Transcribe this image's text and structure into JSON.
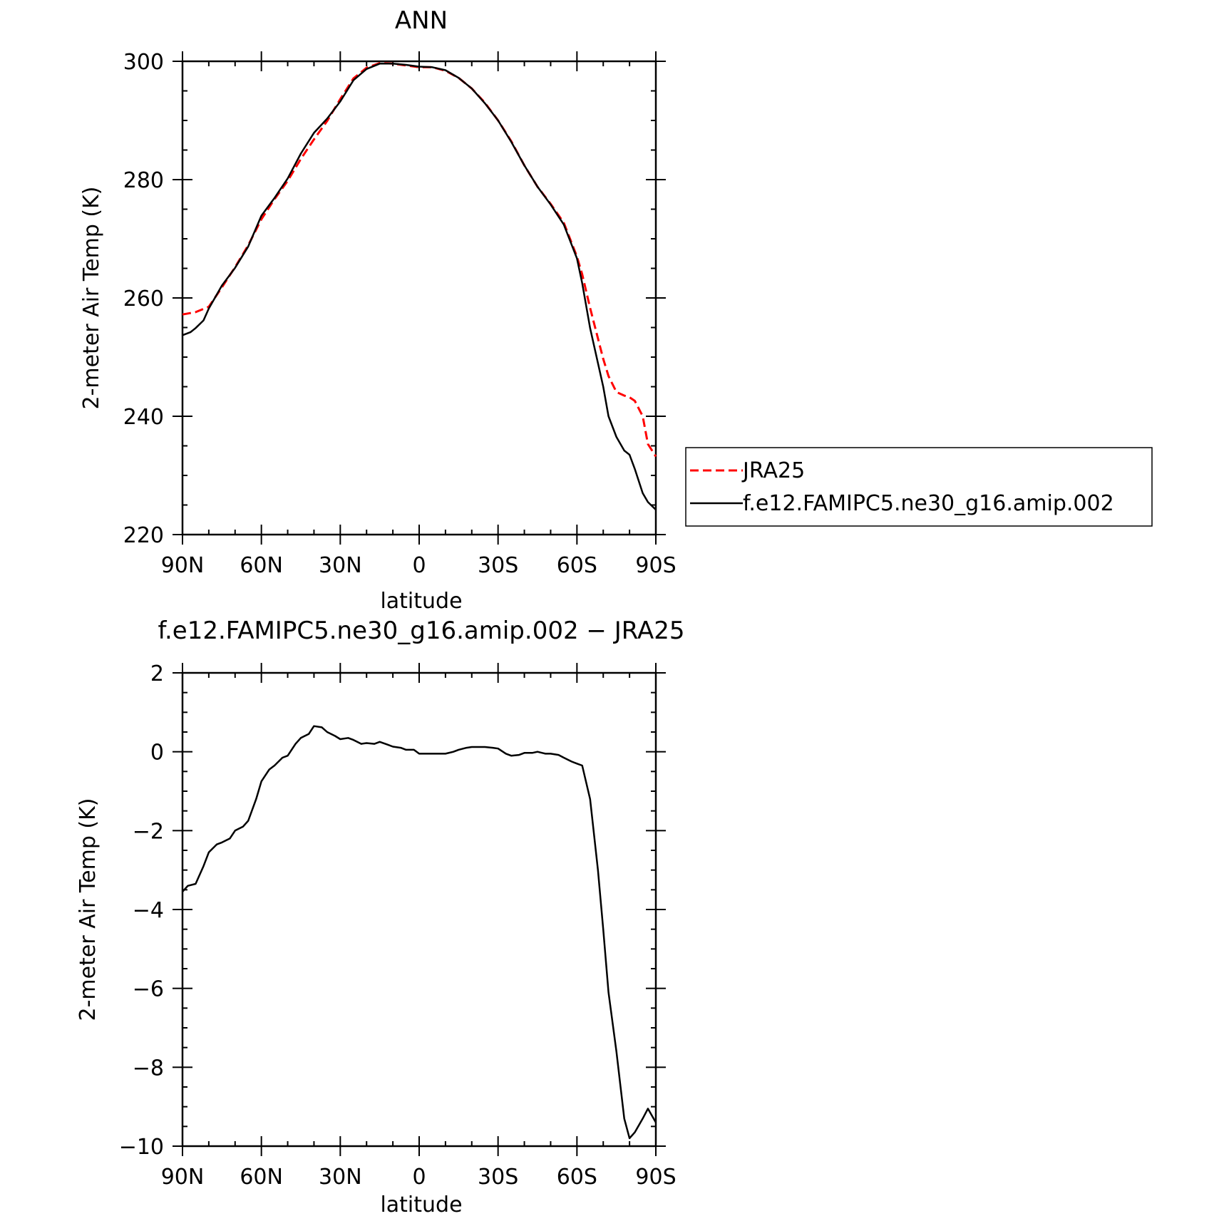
{
  "chart_data": [
    {
      "type": "line",
      "title": "ANN",
      "xlabel": "latitude",
      "ylabel": "2-meter Air Temp (K)",
      "xlim": [
        90,
        -90
      ],
      "ylim": [
        220,
        300
      ],
      "xticks": [
        90,
        60,
        30,
        0,
        -30,
        -60,
        -90
      ],
      "xtick_labels": [
        "90N",
        "60N",
        "30N",
        "0",
        "30S",
        "60S",
        "90S"
      ],
      "yticks": [
        220,
        240,
        260,
        280,
        300
      ],
      "ytick_labels": [
        "220",
        "240",
        "260",
        "280",
        "300"
      ],
      "grid": false,
      "legend": {
        "placement": "right, outside plot",
        "entries": [
          "JRA25",
          "f.e12.FAMIPC5.ne30_g16.amip.002"
        ]
      },
      "series": [
        {
          "name": "JRA25",
          "style": "dashed",
          "color": "#ff0000",
          "x": [
            90,
            85,
            80,
            75,
            70,
            65,
            60,
            55,
            50,
            45,
            40,
            35,
            30,
            25,
            20,
            15,
            10,
            5,
            0,
            -5,
            -10,
            -15,
            -20,
            -25,
            -30,
            -35,
            -40,
            -45,
            -50,
            -55,
            -60,
            -62,
            -65,
            -70,
            -72,
            -75,
            -78,
            -80,
            -82,
            -85,
            -87,
            -90
          ],
          "y": [
            257.2,
            257.6,
            258.5,
            261.8,
            265.2,
            268.9,
            273.3,
            276.7,
            279.8,
            283.5,
            286.8,
            289.9,
            293.6,
            297.1,
            298.9,
            299.7,
            299.6,
            299.3,
            299.0,
            299.0,
            298.4,
            297.2,
            295.4,
            293.0,
            290.0,
            286.5,
            282.4,
            278.8,
            275.9,
            272.7,
            267.0,
            264.0,
            258.3,
            249.7,
            246.8,
            244.1,
            243.5,
            243.2,
            242.6,
            240.0,
            235.3,
            233.2
          ]
        },
        {
          "name": "f.e12.FAMIPC5.ne30_g16.amip.002",
          "style": "solid",
          "color": "#000000",
          "x": [
            90,
            87,
            85,
            82,
            80,
            75,
            70,
            65,
            60,
            55,
            50,
            45,
            40,
            35,
            30,
            25,
            20,
            15,
            10,
            5,
            0,
            -5,
            -10,
            -15,
            -20,
            -25,
            -30,
            -35,
            -40,
            -45,
            -50,
            -55,
            -60,
            -62,
            -65,
            -70,
            -72,
            -75,
            -78,
            -80,
            -82,
            -85,
            -87,
            -90
          ],
          "y": [
            253.7,
            254.2,
            254.9,
            256.2,
            258.2,
            262.1,
            265.1,
            268.7,
            273.9,
            276.9,
            280.2,
            284.4,
            287.9,
            290.3,
            293.2,
            296.8,
            298.7,
            299.6,
            299.6,
            299.4,
            299.1,
            299.0,
            298.5,
            297.2,
            295.4,
            292.9,
            290.0,
            286.4,
            282.4,
            278.8,
            275.8,
            272.4,
            266.7,
            262.5,
            254.9,
            245.0,
            240.0,
            236.5,
            234.2,
            233.5,
            231.1,
            227.0,
            225.5,
            224.2
          ]
        }
      ]
    },
    {
      "type": "line",
      "title": "f.e12.FAMIPC5.ne30_g16.amip.002 − JRA25",
      "xlabel": "latitude",
      "ylabel": "2-meter Air Temp (K)",
      "xlim": [
        90,
        -90
      ],
      "ylim": [
        -10,
        2
      ],
      "xticks": [
        90,
        60,
        30,
        0,
        -30,
        -60,
        -90
      ],
      "xtick_labels": [
        "90N",
        "60N",
        "30N",
        "0",
        "30S",
        "60S",
        "90S"
      ],
      "yticks": [
        -10,
        -8,
        -6,
        -4,
        -2,
        0,
        2
      ],
      "ytick_labels": [
        "−10",
        "−8",
        "−6",
        "−4",
        "−2",
        "0",
        "2"
      ],
      "grid": false,
      "series": [
        {
          "style": "solid",
          "color": "#000000",
          "x": [
            90,
            88,
            85,
            82,
            80,
            77,
            75,
            72,
            70,
            67,
            65,
            62,
            60,
            57,
            55,
            52,
            50,
            47,
            45,
            42,
            40,
            37,
            35,
            32,
            30,
            27,
            25,
            22,
            20,
            17,
            15,
            12,
            10,
            7,
            5,
            2,
            0,
            -2,
            -5,
            -8,
            -10,
            -13,
            -15,
            -18,
            -20,
            -23,
            -25,
            -28,
            -30,
            -33,
            -35,
            -38,
            -40,
            -43,
            -45,
            -48,
            -50,
            -53,
            -55,
            -58,
            -60,
            -62,
            -65,
            -68,
            -70,
            -72,
            -75,
            -78,
            -80,
            -82,
            -85,
            -87,
            -90
          ],
          "y": [
            -3.55,
            -3.4,
            -3.35,
            -2.9,
            -2.55,
            -2.35,
            -2.3,
            -2.2,
            -2.0,
            -1.9,
            -1.75,
            -1.2,
            -0.75,
            -0.45,
            -0.35,
            -0.15,
            -0.1,
            0.2,
            0.35,
            0.45,
            0.65,
            0.62,
            0.5,
            0.4,
            0.32,
            0.35,
            0.3,
            0.2,
            0.22,
            0.2,
            0.25,
            0.18,
            0.13,
            0.1,
            0.05,
            0.05,
            -0.05,
            -0.05,
            -0.05,
            -0.05,
            -0.05,
            0.0,
            0.05,
            0.1,
            0.12,
            0.12,
            0.12,
            0.1,
            0.08,
            -0.05,
            -0.1,
            -0.08,
            -0.03,
            -0.03,
            0.0,
            -0.05,
            -0.05,
            -0.08,
            -0.15,
            -0.25,
            -0.3,
            -0.35,
            -1.2,
            -3.0,
            -4.5,
            -6.1,
            -7.6,
            -9.3,
            -9.8,
            -9.65,
            -9.3,
            -9.05,
            -9.4
          ]
        }
      ]
    }
  ]
}
